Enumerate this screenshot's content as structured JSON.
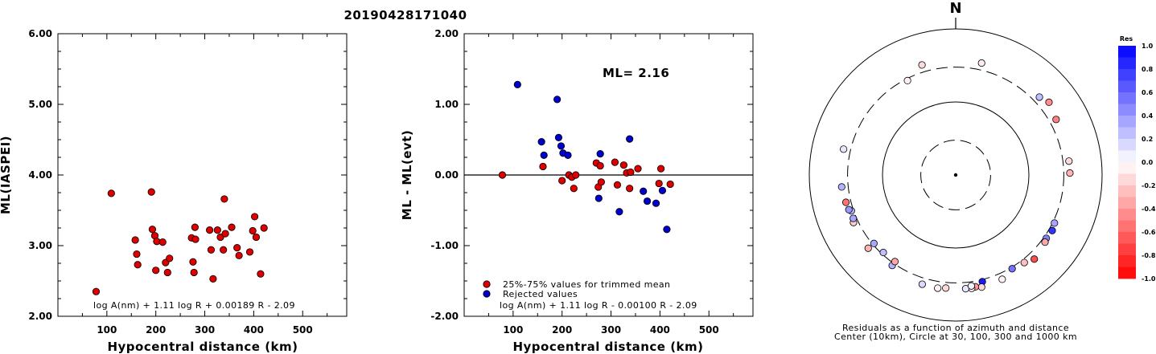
{
  "chart_data": [
    {
      "type": "scatter",
      "title": "20190428171040",
      "xlabel": "Hypocentral distance (km)",
      "ylabel": "ML(IASPEI)",
      "xlim": [
        0,
        590
      ],
      "ylim": [
        2.0,
        6.0
      ],
      "xticks": [
        "100",
        "200",
        "300",
        "400",
        "500"
      ],
      "xtick_values": [
        100,
        200,
        300,
        400,
        500
      ],
      "yticks": [
        "2.00",
        "3.00",
        "4.00",
        "5.00",
        "6.00"
      ],
      "ytick_values": [
        2,
        3,
        4,
        5,
        6
      ],
      "formula": "log A(nm) + 1.11 log R + 0.00189 R - 2.09",
      "point_color": "#dd0000",
      "points": [
        [
          78,
          2.35
        ],
        [
          109,
          3.74
        ],
        [
          158,
          3.08
        ],
        [
          161,
          2.88
        ],
        [
          163,
          2.73
        ],
        [
          191,
          3.76
        ],
        [
          193,
          3.23
        ],
        [
          198,
          3.14
        ],
        [
          200,
          2.65
        ],
        [
          202,
          3.06
        ],
        [
          214,
          3.05
        ],
        [
          220,
          2.76
        ],
        [
          224,
          2.62
        ],
        [
          228,
          2.82
        ],
        [
          273,
          3.11
        ],
        [
          276,
          2.77
        ],
        [
          278,
          2.62
        ],
        [
          280,
          3.26
        ],
        [
          281,
          3.09
        ],
        [
          310,
          3.22
        ],
        [
          313,
          2.94
        ],
        [
          317,
          2.53
        ],
        [
          326,
          3.22
        ],
        [
          332,
          3.12
        ],
        [
          338,
          2.94
        ],
        [
          340,
          3.66
        ],
        [
          342,
          3.17
        ],
        [
          355,
          3.26
        ],
        [
          366,
          2.97
        ],
        [
          370,
          2.86
        ],
        [
          392,
          2.91
        ],
        [
          398,
          3.21
        ],
        [
          402,
          3.41
        ],
        [
          405,
          3.12
        ],
        [
          414,
          2.6
        ],
        [
          421,
          3.25
        ]
      ]
    },
    {
      "type": "scatter",
      "xlabel": "Hypocentral distance (km)",
      "ylabel": "ML - ML(evt)",
      "xlim": [
        0,
        590
      ],
      "ylim": [
        -2.0,
        2.0
      ],
      "xticks": [
        "100",
        "200",
        "300",
        "400",
        "500"
      ],
      "xtick_values": [
        100,
        200,
        300,
        400,
        500
      ],
      "yticks": [
        "-2.00",
        "-1.00",
        "0.00",
        "1.00",
        "2.00"
      ],
      "ytick_values": [
        -2,
        -1,
        0,
        1,
        2
      ],
      "annotation": "ML= 2.16",
      "formula": "log A(nm) + 1.11 log R - 0.00100 R - 2.09",
      "legend": [
        {
          "label": "25%-75% values for trimmed mean",
          "color": "#dd0000"
        },
        {
          "label": "Rejected values",
          "color": "#0000cc"
        }
      ],
      "series": [
        {
          "name": "25%-75% values for trimmed mean",
          "color": "#dd0000",
          "points": [
            [
              78,
              0.0
            ],
            [
              161,
              0.12
            ],
            [
              200,
              -0.08
            ],
            [
              214,
              0.0
            ],
            [
              220,
              -0.03
            ],
            [
              224,
              -0.19
            ],
            [
              228,
              0.0
            ],
            [
              270,
              0.17
            ],
            [
              274,
              -0.17
            ],
            [
              278,
              0.13
            ],
            [
              280,
              -0.1
            ],
            [
              308,
              0.18
            ],
            [
              313,
              -0.14
            ],
            [
              326,
              0.14
            ],
            [
              332,
              0.03
            ],
            [
              338,
              -0.19
            ],
            [
              340,
              0.04
            ],
            [
              355,
              0.09
            ],
            [
              398,
              -0.12
            ],
            [
              402,
              0.09
            ],
            [
              421,
              -0.13
            ]
          ]
        },
        {
          "name": "Rejected values",
          "color": "#0000cc",
          "points": [
            [
              109,
              1.28
            ],
            [
              158,
              0.47
            ],
            [
              163,
              0.28
            ],
            [
              190,
              1.07
            ],
            [
              193,
              0.53
            ],
            [
              198,
              0.41
            ],
            [
              202,
              0.31
            ],
            [
              212,
              0.28
            ],
            [
              275,
              -0.33
            ],
            [
              278,
              0.3
            ],
            [
              317,
              -0.52
            ],
            [
              338,
              0.51
            ],
            [
              366,
              -0.23
            ],
            [
              374,
              -0.37
            ],
            [
              392,
              -0.4
            ],
            [
              405,
              -0.22
            ],
            [
              414,
              -0.77
            ]
          ]
        }
      ]
    },
    {
      "type": "scatter",
      "title": "N",
      "caption_lines": [
        "Residuals as a function of azimuth and distance",
        "Center (10km), Circle at 30, 100, 300 and 1000 km"
      ],
      "colorbar_title": "Res",
      "colorbar_ticks": [
        "1.0",
        "0.8",
        "0.6",
        "0.4",
        "0.2",
        "0.0",
        "-0.2",
        "-0.4",
        "-0.6",
        "-0.8",
        "-1.0"
      ],
      "colorbar_tick_values": [
        1.0,
        0.8,
        0.6,
        0.4,
        0.2,
        0.0,
        -0.2,
        -0.4,
        -0.6,
        -0.8,
        -1.0
      ],
      "colorbar_range": [
        -1.0,
        1.0
      ],
      "rings_km": [
        30,
        100,
        300,
        1000
      ],
      "ring_styles": [
        "dashed",
        "solid",
        "dashed",
        "solid"
      ],
      "points_az_dist_res": [
        [
          333,
          282,
          -0.05
        ],
        [
          13,
          374,
          -0.08
        ],
        [
          343,
          376,
          -0.15
        ],
        [
          47,
          366,
          0.25
        ],
        [
          52,
          414,
          -0.45
        ],
        [
          61,
          370,
          -0.5
        ],
        [
          83,
          362,
          -0.15
        ],
        [
          89,
          363,
          -0.3
        ],
        [
          116,
          317,
          0.35
        ],
        [
          120,
          333,
          0.8
        ],
        [
          125,
          324,
          0.5
        ],
        [
          127,
          337,
          -0.35
        ],
        [
          137,
          375,
          -0.7
        ],
        [
          142,
          332,
          -0.25
        ],
        [
          149,
          314,
          0.55
        ],
        [
          156,
          365,
          -0.05
        ],
        [
          166,
          320,
          0.9
        ],
        [
          167,
          376,
          -0.15
        ],
        [
          170,
          358,
          -0.4
        ],
        [
          172,
          369,
          -0.05
        ],
        [
          175,
          365,
          0.1
        ],
        [
          172,
          342,
          0.05
        ],
        [
          185,
          358,
          -0.15
        ],
        [
          189,
          370,
          -0.05
        ],
        [
          197,
          366,
          0.15
        ],
        [
          215,
          325,
          0.3
        ],
        [
          215,
          280,
          -0.35
        ],
        [
          223,
          282,
          0.25
        ],
        [
          230,
          363,
          -0.3
        ],
        [
          230,
          287,
          0.35
        ],
        [
          245,
          347,
          -0.2
        ],
        [
          247,
          331,
          0.35
        ],
        [
          251,
          322,
          0.3
        ],
        [
          252,
          342,
          0.4
        ],
        [
          256,
          351,
          -0.55
        ],
        [
          264,
          368,
          0.3
        ],
        [
          283,
          373,
          0.1
        ]
      ]
    }
  ]
}
